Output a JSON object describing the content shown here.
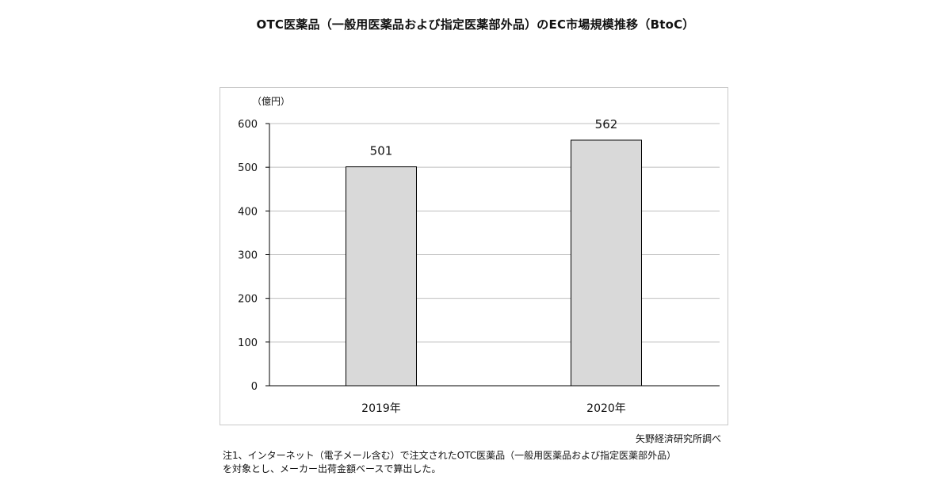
{
  "chart_title": "OTC医薬品（一般用医薬品および指定医薬部外品）のEC市場規模推移（BtoC）",
  "source_text": "矢野経済研究所調べ",
  "notes": [
    "注1、インターネット（電子メール含む）で注文されたOTC医薬品（一般用医薬品および指定医薬部外品）",
    "を対象とし、メーカー出荷金額ベースで算出した。"
  ],
  "chart_data": {
    "type": "bar",
    "title": "OTC医薬品（一般用医薬品および指定医薬部外品）のEC市場規模推移（BtoC）",
    "unit_label": "（億円）",
    "categories": [
      "2019年",
      "2020年"
    ],
    "values": [
      501,
      562
    ],
    "data_labels": [
      "501",
      "562"
    ],
    "ylim": [
      0,
      600
    ],
    "yticks": [
      "0",
      "100",
      "200",
      "300",
      "400",
      "500",
      "600"
    ],
    "grid": true,
    "colors": {
      "bar_fill": "#d9d9d9",
      "bar_stroke": "#000000",
      "grid": "#bfbfbf"
    }
  }
}
